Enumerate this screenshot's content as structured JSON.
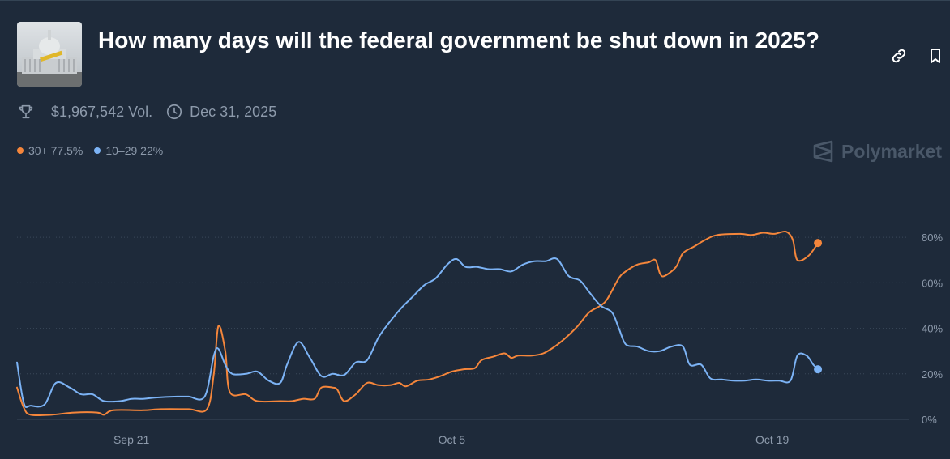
{
  "market": {
    "title": "How many days will the federal government be shut down in 2025?",
    "volume": "$1,967,542 Vol.",
    "end_date": "Dec 31, 2025",
    "brand": "Polymarket"
  },
  "colors": {
    "background": "#1e2a3a",
    "orange": "#f5863b",
    "blue": "#7cb3f5",
    "grid": "#3a4859",
    "axis_text": "#8d9aab"
  },
  "chart_data": {
    "type": "line",
    "title": "",
    "xlabel": "",
    "ylabel": "",
    "ylim": [
      0,
      95
    ],
    "xlim": [
      16,
      55
    ],
    "y_ticks": [
      0,
      20,
      40,
      60,
      80
    ],
    "y_tick_labels": [
      "0%",
      "20%",
      "40%",
      "60%",
      "80%"
    ],
    "x_ticks": [
      21,
      35,
      49
    ],
    "x_tick_labels": [
      "Sep 21",
      "Oct 5",
      "Oct 19"
    ],
    "legend_position": "top-left",
    "grid": true,
    "series": [
      {
        "name": "30+",
        "label": "30+ 77.5%",
        "color": "#f5863b",
        "points": [
          [
            16.0,
            14
          ],
          [
            16.3,
            5
          ],
          [
            16.6,
            2
          ],
          [
            17.5,
            2
          ],
          [
            18.5,
            3
          ],
          [
            19.5,
            3
          ],
          [
            19.8,
            2
          ],
          [
            20.2,
            4
          ],
          [
            21.5,
            4
          ],
          [
            22.3,
            4.5
          ],
          [
            23.5,
            4.5
          ],
          [
            24.3,
            4.5
          ],
          [
            24.6,
            20
          ],
          [
            24.8,
            41
          ],
          [
            25.1,
            30
          ],
          [
            25.3,
            12
          ],
          [
            26.0,
            11
          ],
          [
            26.5,
            8
          ],
          [
            27.5,
            8
          ],
          [
            28.0,
            8
          ],
          [
            28.5,
            9
          ],
          [
            29.0,
            9
          ],
          [
            29.3,
            14
          ],
          [
            29.8,
            14
          ],
          [
            30.0,
            13
          ],
          [
            30.3,
            8
          ],
          [
            30.8,
            11
          ],
          [
            31.3,
            16
          ],
          [
            31.8,
            15
          ],
          [
            32.3,
            15
          ],
          [
            32.7,
            16
          ],
          [
            33.0,
            14.5
          ],
          [
            33.5,
            17
          ],
          [
            34.0,
            17.5
          ],
          [
            34.5,
            19
          ],
          [
            35.0,
            21
          ],
          [
            35.5,
            22
          ],
          [
            36.0,
            22.5
          ],
          [
            36.3,
            26
          ],
          [
            36.8,
            27.5
          ],
          [
            37.3,
            29
          ],
          [
            37.6,
            27
          ],
          [
            37.9,
            28
          ],
          [
            38.5,
            28
          ],
          [
            39.0,
            29
          ],
          [
            39.5,
            32
          ],
          [
            40.0,
            36
          ],
          [
            40.5,
            41
          ],
          [
            41.0,
            47
          ],
          [
            41.5,
            50
          ],
          [
            41.8,
            53
          ],
          [
            42.3,
            62
          ],
          [
            42.6,
            65
          ],
          [
            43.1,
            68
          ],
          [
            43.6,
            69
          ],
          [
            43.9,
            70
          ],
          [
            44.1,
            64
          ],
          [
            44.3,
            63
          ],
          [
            44.8,
            67
          ],
          [
            45.1,
            73
          ],
          [
            45.6,
            76
          ],
          [
            46.1,
            79
          ],
          [
            46.6,
            81
          ],
          [
            47.6,
            81.5
          ],
          [
            48.1,
            81
          ],
          [
            48.6,
            82
          ],
          [
            49.1,
            81.5
          ],
          [
            49.6,
            82.5
          ],
          [
            49.9,
            79
          ],
          [
            50.1,
            70
          ],
          [
            50.6,
            72
          ],
          [
            51.0,
            77.5
          ]
        ]
      },
      {
        "name": "10–29",
        "label": "10–29 22%",
        "color": "#7cb3f5",
        "points": [
          [
            16.0,
            25
          ],
          [
            16.3,
            7
          ],
          [
            16.6,
            6
          ],
          [
            17.2,
            6.5
          ],
          [
            17.7,
            16
          ],
          [
            18.3,
            14
          ],
          [
            18.8,
            11
          ],
          [
            19.3,
            11
          ],
          [
            19.8,
            8
          ],
          [
            20.5,
            8
          ],
          [
            21.0,
            9
          ],
          [
            21.5,
            9
          ],
          [
            22.0,
            9.5
          ],
          [
            23.0,
            10
          ],
          [
            23.5,
            10
          ],
          [
            24.2,
            10
          ],
          [
            24.6,
            28
          ],
          [
            24.8,
            31
          ],
          [
            25.1,
            24
          ],
          [
            25.4,
            20
          ],
          [
            26.0,
            20
          ],
          [
            26.5,
            21
          ],
          [
            27.0,
            17
          ],
          [
            27.5,
            16
          ],
          [
            27.8,
            24
          ],
          [
            28.3,
            34
          ],
          [
            28.8,
            27
          ],
          [
            29.3,
            19
          ],
          [
            29.8,
            20
          ],
          [
            30.3,
            19.5
          ],
          [
            30.8,
            25
          ],
          [
            31.3,
            26
          ],
          [
            31.8,
            36
          ],
          [
            32.3,
            43
          ],
          [
            32.8,
            49
          ],
          [
            33.3,
            54
          ],
          [
            33.8,
            59
          ],
          [
            34.3,
            62
          ],
          [
            34.8,
            68
          ],
          [
            35.2,
            70.5
          ],
          [
            35.6,
            67
          ],
          [
            36.1,
            67
          ],
          [
            36.6,
            66
          ],
          [
            37.1,
            66
          ],
          [
            37.6,
            65
          ],
          [
            38.1,
            68
          ],
          [
            38.6,
            69.5
          ],
          [
            39.1,
            69.5
          ],
          [
            39.6,
            70.5
          ],
          [
            40.1,
            63
          ],
          [
            40.6,
            61
          ],
          [
            41.0,
            56
          ],
          [
            41.5,
            50
          ],
          [
            42.0,
            47
          ],
          [
            42.3,
            40
          ],
          [
            42.6,
            33
          ],
          [
            43.1,
            32
          ],
          [
            43.6,
            30
          ],
          [
            44.1,
            30
          ],
          [
            44.6,
            32
          ],
          [
            45.1,
            32
          ],
          [
            45.4,
            24
          ],
          [
            45.9,
            24
          ],
          [
            46.3,
            18
          ],
          [
            46.8,
            17.5
          ],
          [
            47.3,
            17
          ],
          [
            47.8,
            17
          ],
          [
            48.3,
            17.5
          ],
          [
            48.8,
            17
          ],
          [
            49.3,
            17
          ],
          [
            49.8,
            17
          ],
          [
            50.1,
            28
          ],
          [
            50.5,
            28
          ],
          [
            50.8,
            24
          ],
          [
            51.0,
            22
          ]
        ]
      }
    ]
  }
}
